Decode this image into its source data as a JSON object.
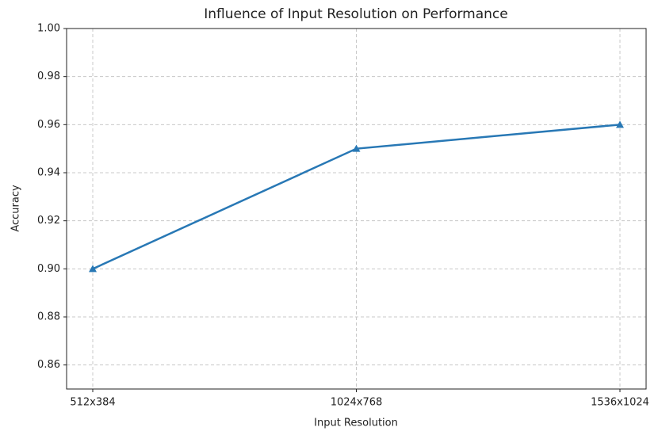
{
  "chart_data": {
    "type": "line",
    "title": "Influence of Input Resolution on Performance",
    "xlabel": "Input Resolution",
    "ylabel": "Accuracy",
    "categories": [
      "512x384",
      "1024x768",
      "1536x1024"
    ],
    "values": [
      0.9,
      0.95,
      0.96
    ],
    "color": "#2878b5",
    "marker": "triangle",
    "ylim": [
      0.85,
      1.0
    ],
    "yticks": [
      0.86,
      0.88,
      {
        "value": 0.9,
        "label": "0.90"
      },
      0.92,
      0.94,
      0.96,
      0.98,
      {
        "value": 1.0,
        "label": "1.00"
      }
    ],
    "grid": true
  }
}
